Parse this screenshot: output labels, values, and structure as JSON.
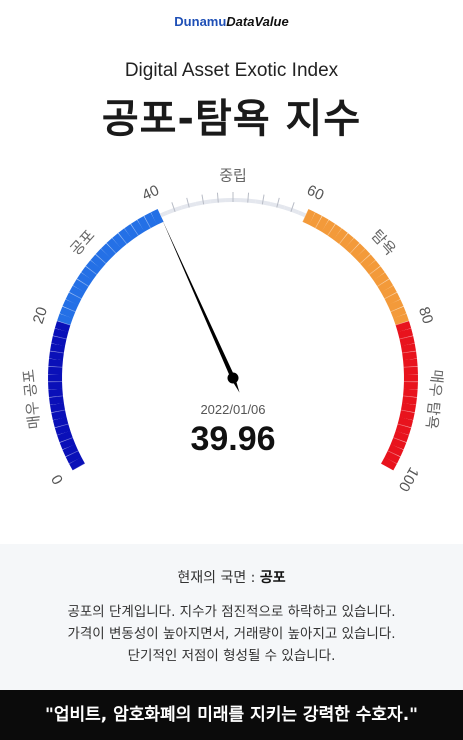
{
  "brand": {
    "part1": "Dunamu",
    "part2": "DataValue"
  },
  "header": {
    "subtitle": "Digital Asset Exotic Index",
    "title": "공포-탐욕 지수"
  },
  "gauge": {
    "date": "2022/01/06",
    "value_label": "39.96",
    "value": 39.96,
    "min": 0,
    "max": 100,
    "tick_labels": [
      "0",
      "20",
      "40",
      "60",
      "80",
      "100"
    ],
    "zones": [
      "매우 공포",
      "공포",
      "중립",
      "탐욕",
      "매우 탐욕"
    ],
    "colors": {
      "extreme_fear": "#0a10b8",
      "fear": "#2470e6",
      "neutral": "#e4e7ee",
      "greed": "#f39a3a",
      "extreme_greed": "#e8131d",
      "needle": "#000000"
    }
  },
  "info": {
    "phase_prefix": "현재의 국면 : ",
    "phase_value": "공포",
    "desc_lines": [
      "공포의 단계입니다. 지수가 점진적으로 하락하고 있습니다.",
      "가격이 변동성이 높아지면서, 거래량이 높아지고 있습니다.",
      "단기적인 저점이 형성될 수 있습니다."
    ]
  },
  "footer": {
    "slogan": "\"업비트, 암호화폐의 미래를 지키는 강력한 수호자.\""
  }
}
